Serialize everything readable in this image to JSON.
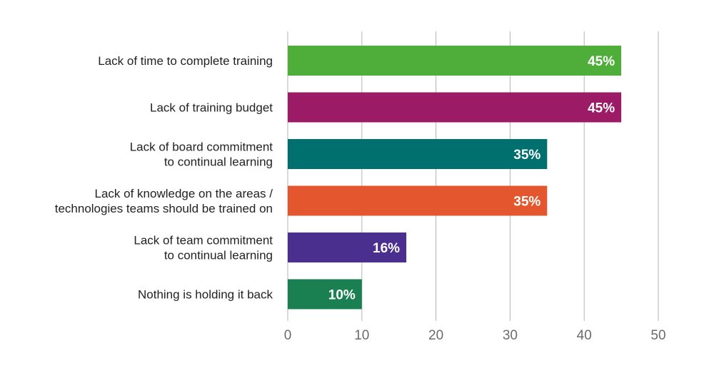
{
  "chart_data": {
    "type": "bar",
    "orientation": "horizontal",
    "categories": [
      [
        "Lack of time to complete training"
      ],
      [
        "Lack of training budget"
      ],
      [
        "Lack of board commitment",
        "to continual learning"
      ],
      [
        "Lack of knowledge on the areas /",
        "technologies teams should be trained on"
      ],
      [
        "Lack of team commitment",
        "to continual learning"
      ],
      [
        "Nothing is holding it back"
      ]
    ],
    "values": [
      45,
      45,
      35,
      35,
      16,
      10
    ],
    "data_labels": [
      "45%",
      "45%",
      "35%",
      "35%",
      "16%",
      "10%"
    ],
    "colors": [
      "#4fae3a",
      "#9b1b66",
      "#00706f",
      "#e4572e",
      "#4b2f8e",
      "#1a8052"
    ],
    "xlim": [
      0,
      50
    ],
    "xticks": [
      0,
      10,
      20,
      30,
      40,
      50
    ],
    "grid": true,
    "legend": "none",
    "title": "",
    "xlabel": "",
    "ylabel": ""
  }
}
